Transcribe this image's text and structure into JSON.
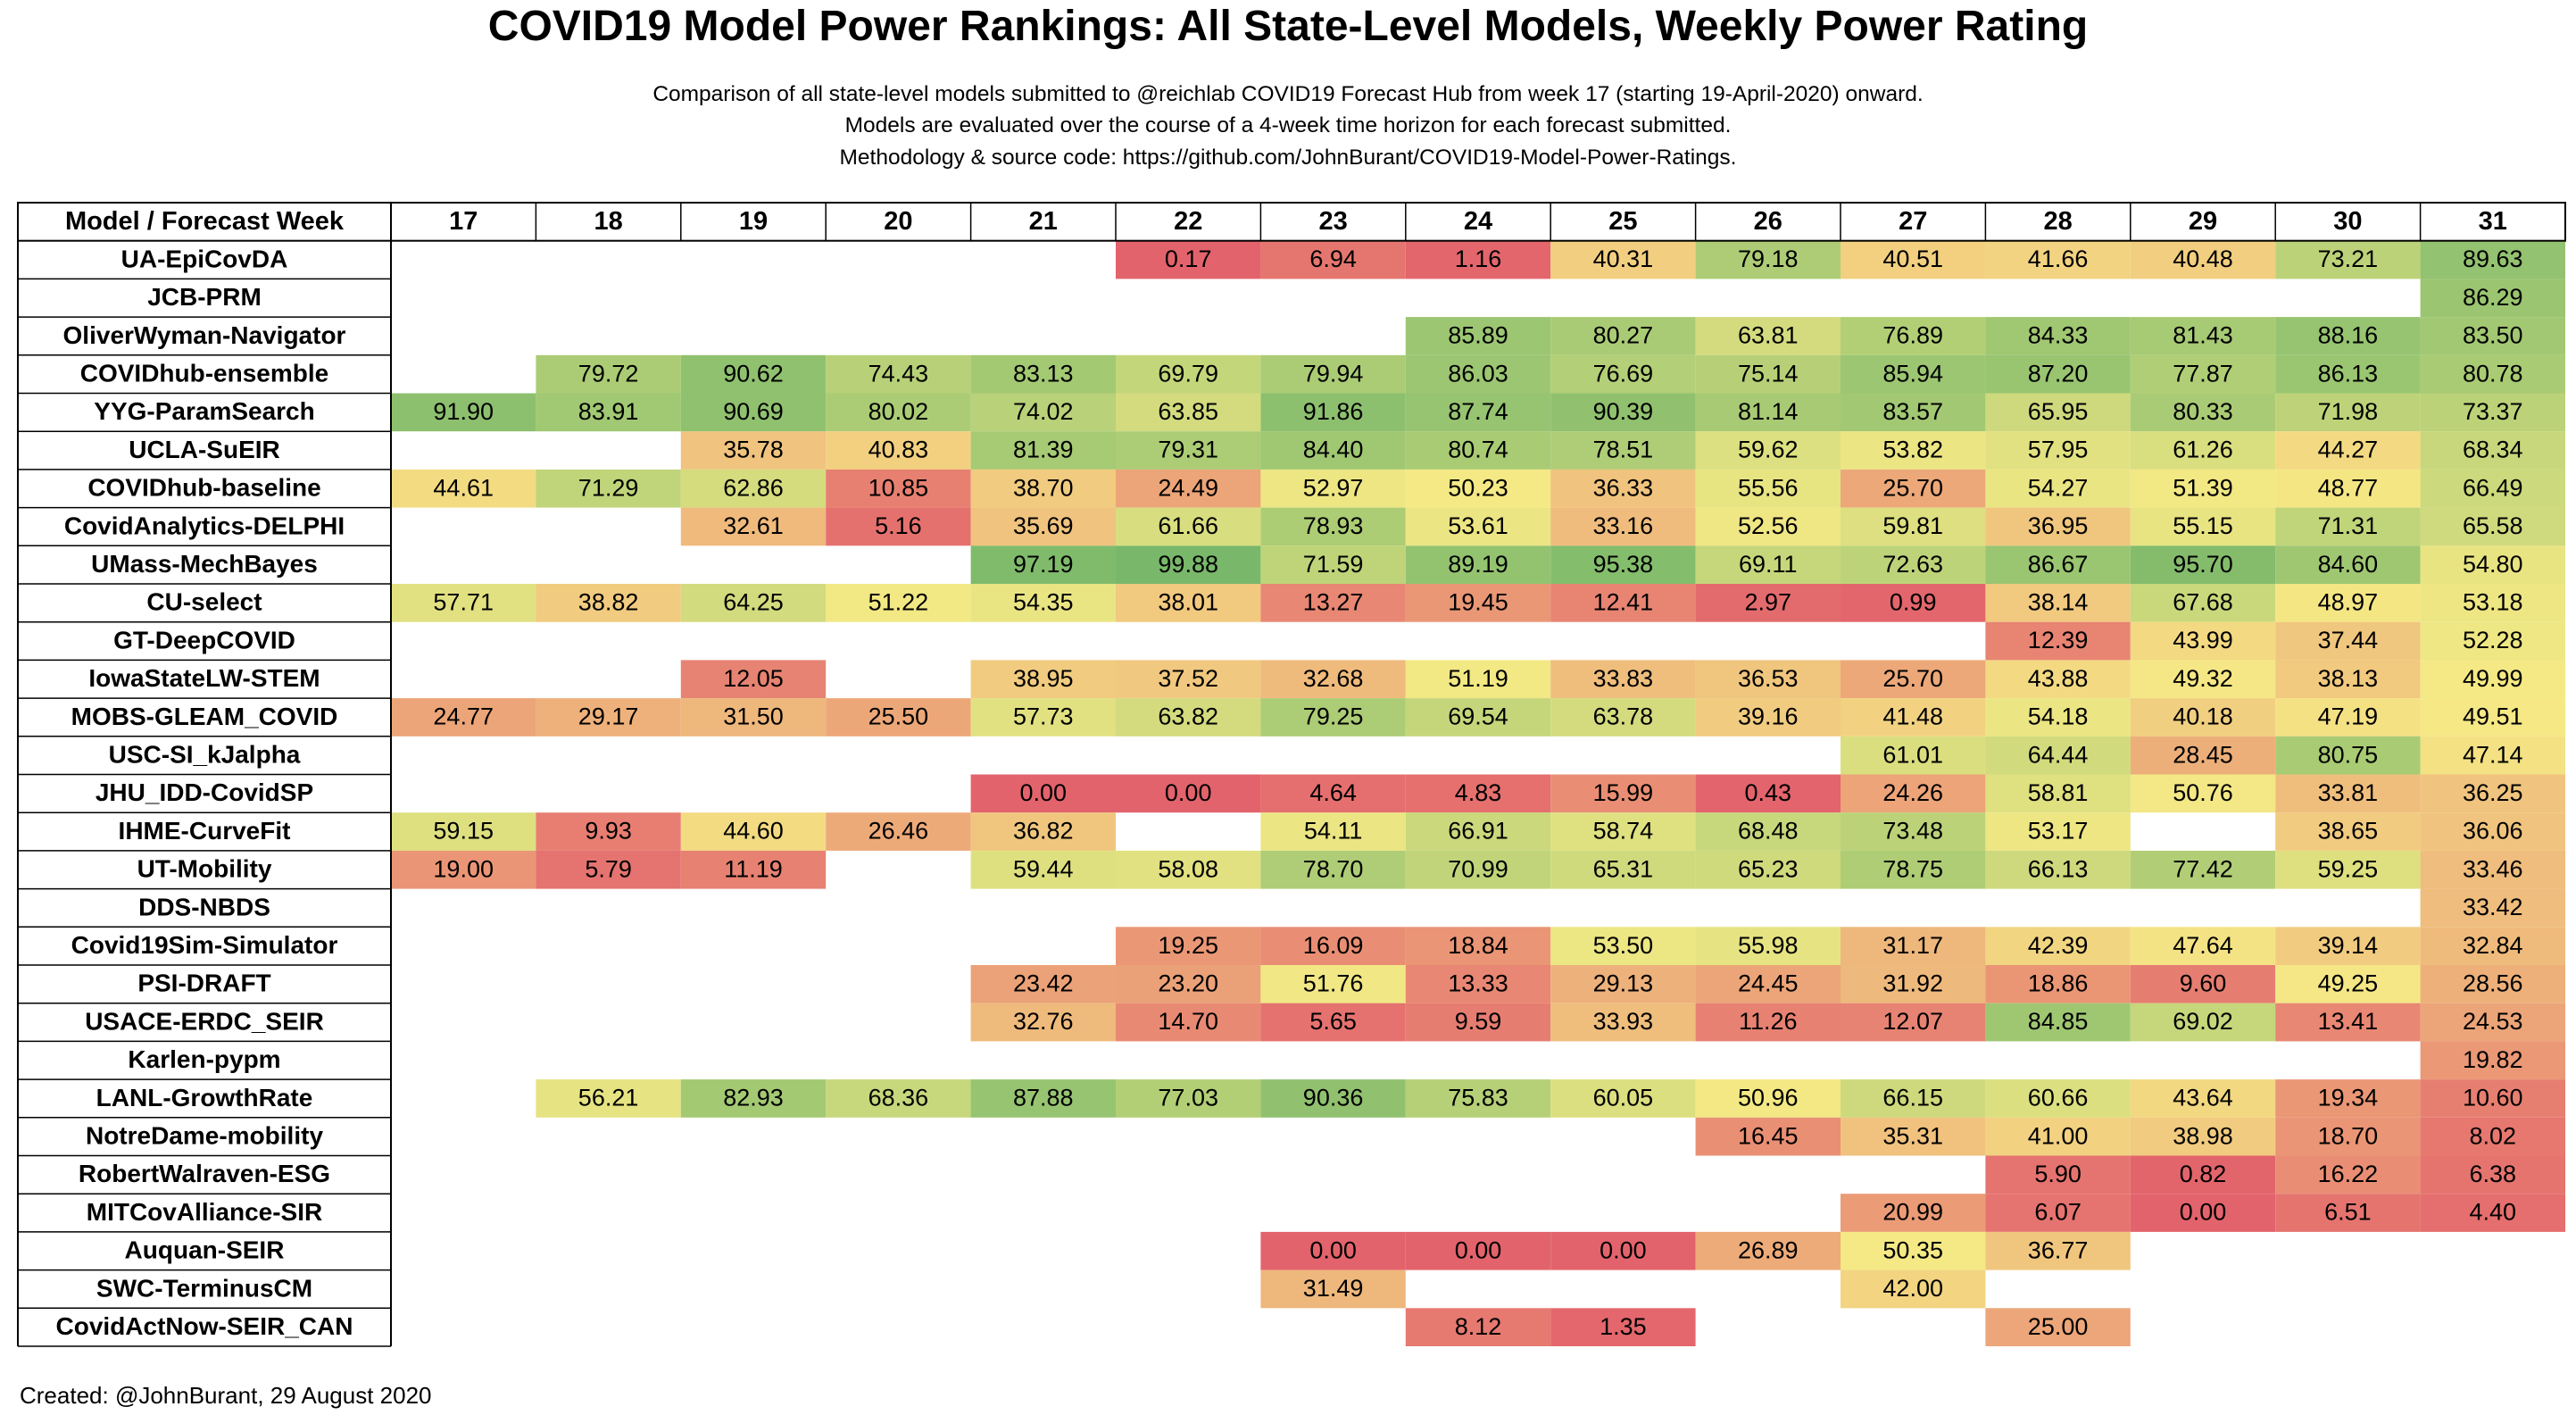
{
  "header": {
    "title": "COVID19 Model Power Rankings: All State-Level Models, Weekly Power Rating",
    "subtitle_lines": [
      "Comparison of all state-level models submitted to @reichlab COVID19 Forecast Hub from week 17 (starting 19-April-2020) onward.",
      "Models are evaluated over the course of a 4-week time horizon for each forecast submitted.",
      "Methodology & source code: https://github.com/JohnBurant/COVID19-Model-Power-Ratings."
    ]
  },
  "footer": {
    "created": "Created: @JohnBurant, 29 August 2020"
  },
  "colors": {
    "low": "#e3636c",
    "mid": "#f5e985",
    "high": "#79b86a",
    "grid": "#000000"
  },
  "chart_data": {
    "type": "heatmap",
    "corner_label": "Model / Forecast Week",
    "columns": [
      "17",
      "18",
      "19",
      "20",
      "21",
      "22",
      "23",
      "24",
      "25",
      "26",
      "27",
      "28",
      "29",
      "30",
      "31"
    ],
    "value_range": [
      0,
      100
    ],
    "rows": [
      {
        "model": "UA-EpiCovDA",
        "values": [
          null,
          null,
          null,
          null,
          null,
          0.17,
          6.94,
          1.16,
          40.31,
          79.18,
          40.51,
          41.66,
          40.48,
          73.21,
          89.63
        ]
      },
      {
        "model": "JCB-PRM",
        "values": [
          null,
          null,
          null,
          null,
          null,
          null,
          null,
          null,
          null,
          null,
          null,
          null,
          null,
          null,
          86.29
        ]
      },
      {
        "model": "OliverWyman-Navigator",
        "values": [
          null,
          null,
          null,
          null,
          null,
          null,
          null,
          85.89,
          80.27,
          63.81,
          76.89,
          84.33,
          81.43,
          88.16,
          83.5
        ]
      },
      {
        "model": "COVIDhub-ensemble",
        "values": [
          null,
          79.72,
          90.62,
          74.43,
          83.13,
          69.79,
          79.94,
          86.03,
          76.69,
          75.14,
          85.94,
          87.2,
          77.87,
          86.13,
          80.78
        ]
      },
      {
        "model": "YYG-ParamSearch",
        "values": [
          91.9,
          83.91,
          90.69,
          80.02,
          74.02,
          63.85,
          91.86,
          87.74,
          90.39,
          81.14,
          83.57,
          65.95,
          80.33,
          71.98,
          73.37
        ]
      },
      {
        "model": "UCLA-SuEIR",
        "values": [
          null,
          null,
          35.78,
          40.83,
          81.39,
          79.31,
          84.4,
          80.74,
          78.51,
          59.62,
          53.82,
          57.95,
          61.26,
          44.27,
          68.34
        ]
      },
      {
        "model": "COVIDhub-baseline",
        "values": [
          44.61,
          71.29,
          62.86,
          10.85,
          38.7,
          24.49,
          52.97,
          50.23,
          36.33,
          55.56,
          25.7,
          54.27,
          51.39,
          48.77,
          66.49
        ]
      },
      {
        "model": "CovidAnalytics-DELPHI",
        "values": [
          null,
          null,
          32.61,
          5.16,
          35.69,
          61.66,
          78.93,
          53.61,
          33.16,
          52.56,
          59.81,
          36.95,
          55.15,
          71.31,
          65.58
        ]
      },
      {
        "model": "UMass-MechBayes",
        "values": [
          null,
          null,
          null,
          null,
          97.19,
          99.88,
          71.59,
          89.19,
          95.38,
          69.11,
          72.63,
          86.67,
          95.7,
          84.6,
          54.8
        ]
      },
      {
        "model": "CU-select",
        "values": [
          57.71,
          38.82,
          64.25,
          51.22,
          54.35,
          38.01,
          13.27,
          19.45,
          12.41,
          2.97,
          0.99,
          38.14,
          67.68,
          48.97,
          53.18
        ]
      },
      {
        "model": "GT-DeepCOVID",
        "values": [
          null,
          null,
          null,
          null,
          null,
          null,
          null,
          null,
          null,
          null,
          null,
          12.39,
          43.99,
          37.44,
          52.28
        ]
      },
      {
        "model": "IowaStateLW-STEM",
        "values": [
          null,
          null,
          12.05,
          null,
          38.95,
          37.52,
          32.68,
          51.19,
          33.83,
          36.53,
          25.7,
          43.88,
          49.32,
          38.13,
          49.99
        ]
      },
      {
        "model": "MOBS-GLEAM_COVID",
        "values": [
          24.77,
          29.17,
          31.5,
          25.5,
          57.73,
          63.82,
          79.25,
          69.54,
          63.78,
          39.16,
          41.48,
          54.18,
          40.18,
          47.19,
          49.51
        ]
      },
      {
        "model": "USC-SI_kJalpha",
        "values": [
          null,
          null,
          null,
          null,
          null,
          null,
          null,
          null,
          null,
          null,
          61.01,
          64.44,
          28.45,
          80.75,
          47.14
        ]
      },
      {
        "model": "JHU_IDD-CovidSP",
        "values": [
          null,
          null,
          null,
          null,
          0.0,
          0.0,
          4.64,
          4.83,
          15.99,
          0.43,
          24.26,
          58.81,
          50.76,
          33.81,
          36.25
        ]
      },
      {
        "model": "IHME-CurveFit",
        "values": [
          59.15,
          9.93,
          44.6,
          26.46,
          36.82,
          null,
          54.11,
          66.91,
          58.74,
          68.48,
          73.48,
          53.17,
          null,
          38.65,
          36.06
        ]
      },
      {
        "model": "UT-Mobility",
        "values": [
          19.0,
          5.79,
          11.19,
          null,
          59.44,
          58.08,
          78.7,
          70.99,
          65.31,
          65.23,
          78.75,
          66.13,
          77.42,
          59.25,
          33.46
        ]
      },
      {
        "model": "DDS-NBDS",
        "values": [
          null,
          null,
          null,
          null,
          null,
          null,
          null,
          null,
          null,
          null,
          null,
          null,
          null,
          null,
          33.42
        ]
      },
      {
        "model": "Covid19Sim-Simulator",
        "values": [
          null,
          null,
          null,
          null,
          null,
          19.25,
          16.09,
          18.84,
          53.5,
          55.98,
          31.17,
          42.39,
          47.64,
          39.14,
          32.84
        ]
      },
      {
        "model": "PSI-DRAFT",
        "values": [
          null,
          null,
          null,
          null,
          23.42,
          23.2,
          51.76,
          13.33,
          29.13,
          24.45,
          31.92,
          18.86,
          9.6,
          49.25,
          28.56
        ]
      },
      {
        "model": "USACE-ERDC_SEIR",
        "values": [
          null,
          null,
          null,
          null,
          32.76,
          14.7,
          5.65,
          9.59,
          33.93,
          11.26,
          12.07,
          84.85,
          69.02,
          13.41,
          24.53
        ]
      },
      {
        "model": "Karlen-pypm",
        "values": [
          null,
          null,
          null,
          null,
          null,
          null,
          null,
          null,
          null,
          null,
          null,
          null,
          null,
          null,
          19.82
        ]
      },
      {
        "model": "LANL-GrowthRate",
        "values": [
          null,
          56.21,
          82.93,
          68.36,
          87.88,
          77.03,
          90.36,
          75.83,
          60.05,
          50.96,
          66.15,
          60.66,
          43.64,
          19.34,
          10.6
        ]
      },
      {
        "model": "NotreDame-mobility",
        "values": [
          null,
          null,
          null,
          null,
          null,
          null,
          null,
          null,
          null,
          16.45,
          35.31,
          41.0,
          38.98,
          18.7,
          8.02
        ]
      },
      {
        "model": "RobertWalraven-ESG",
        "values": [
          null,
          null,
          null,
          null,
          null,
          null,
          null,
          null,
          null,
          null,
          null,
          5.9,
          0.82,
          16.22,
          6.38
        ]
      },
      {
        "model": "MITCovAlliance-SIR",
        "values": [
          null,
          null,
          null,
          null,
          null,
          null,
          null,
          null,
          null,
          null,
          20.99,
          6.07,
          0.0,
          6.51,
          4.4
        ]
      },
      {
        "model": "Auquan-SEIR",
        "values": [
          null,
          null,
          null,
          null,
          null,
          null,
          0.0,
          0.0,
          0.0,
          26.89,
          50.35,
          36.77,
          null,
          null,
          null
        ]
      },
      {
        "model": "SWC-TerminusCM",
        "values": [
          null,
          null,
          null,
          null,
          null,
          null,
          31.49,
          null,
          null,
          null,
          42.0,
          null,
          null,
          null,
          null
        ]
      },
      {
        "model": "CovidActNow-SEIR_CAN",
        "values": [
          null,
          null,
          null,
          null,
          null,
          null,
          null,
          8.12,
          1.35,
          null,
          null,
          25.0,
          null,
          null,
          null
        ]
      }
    ]
  }
}
